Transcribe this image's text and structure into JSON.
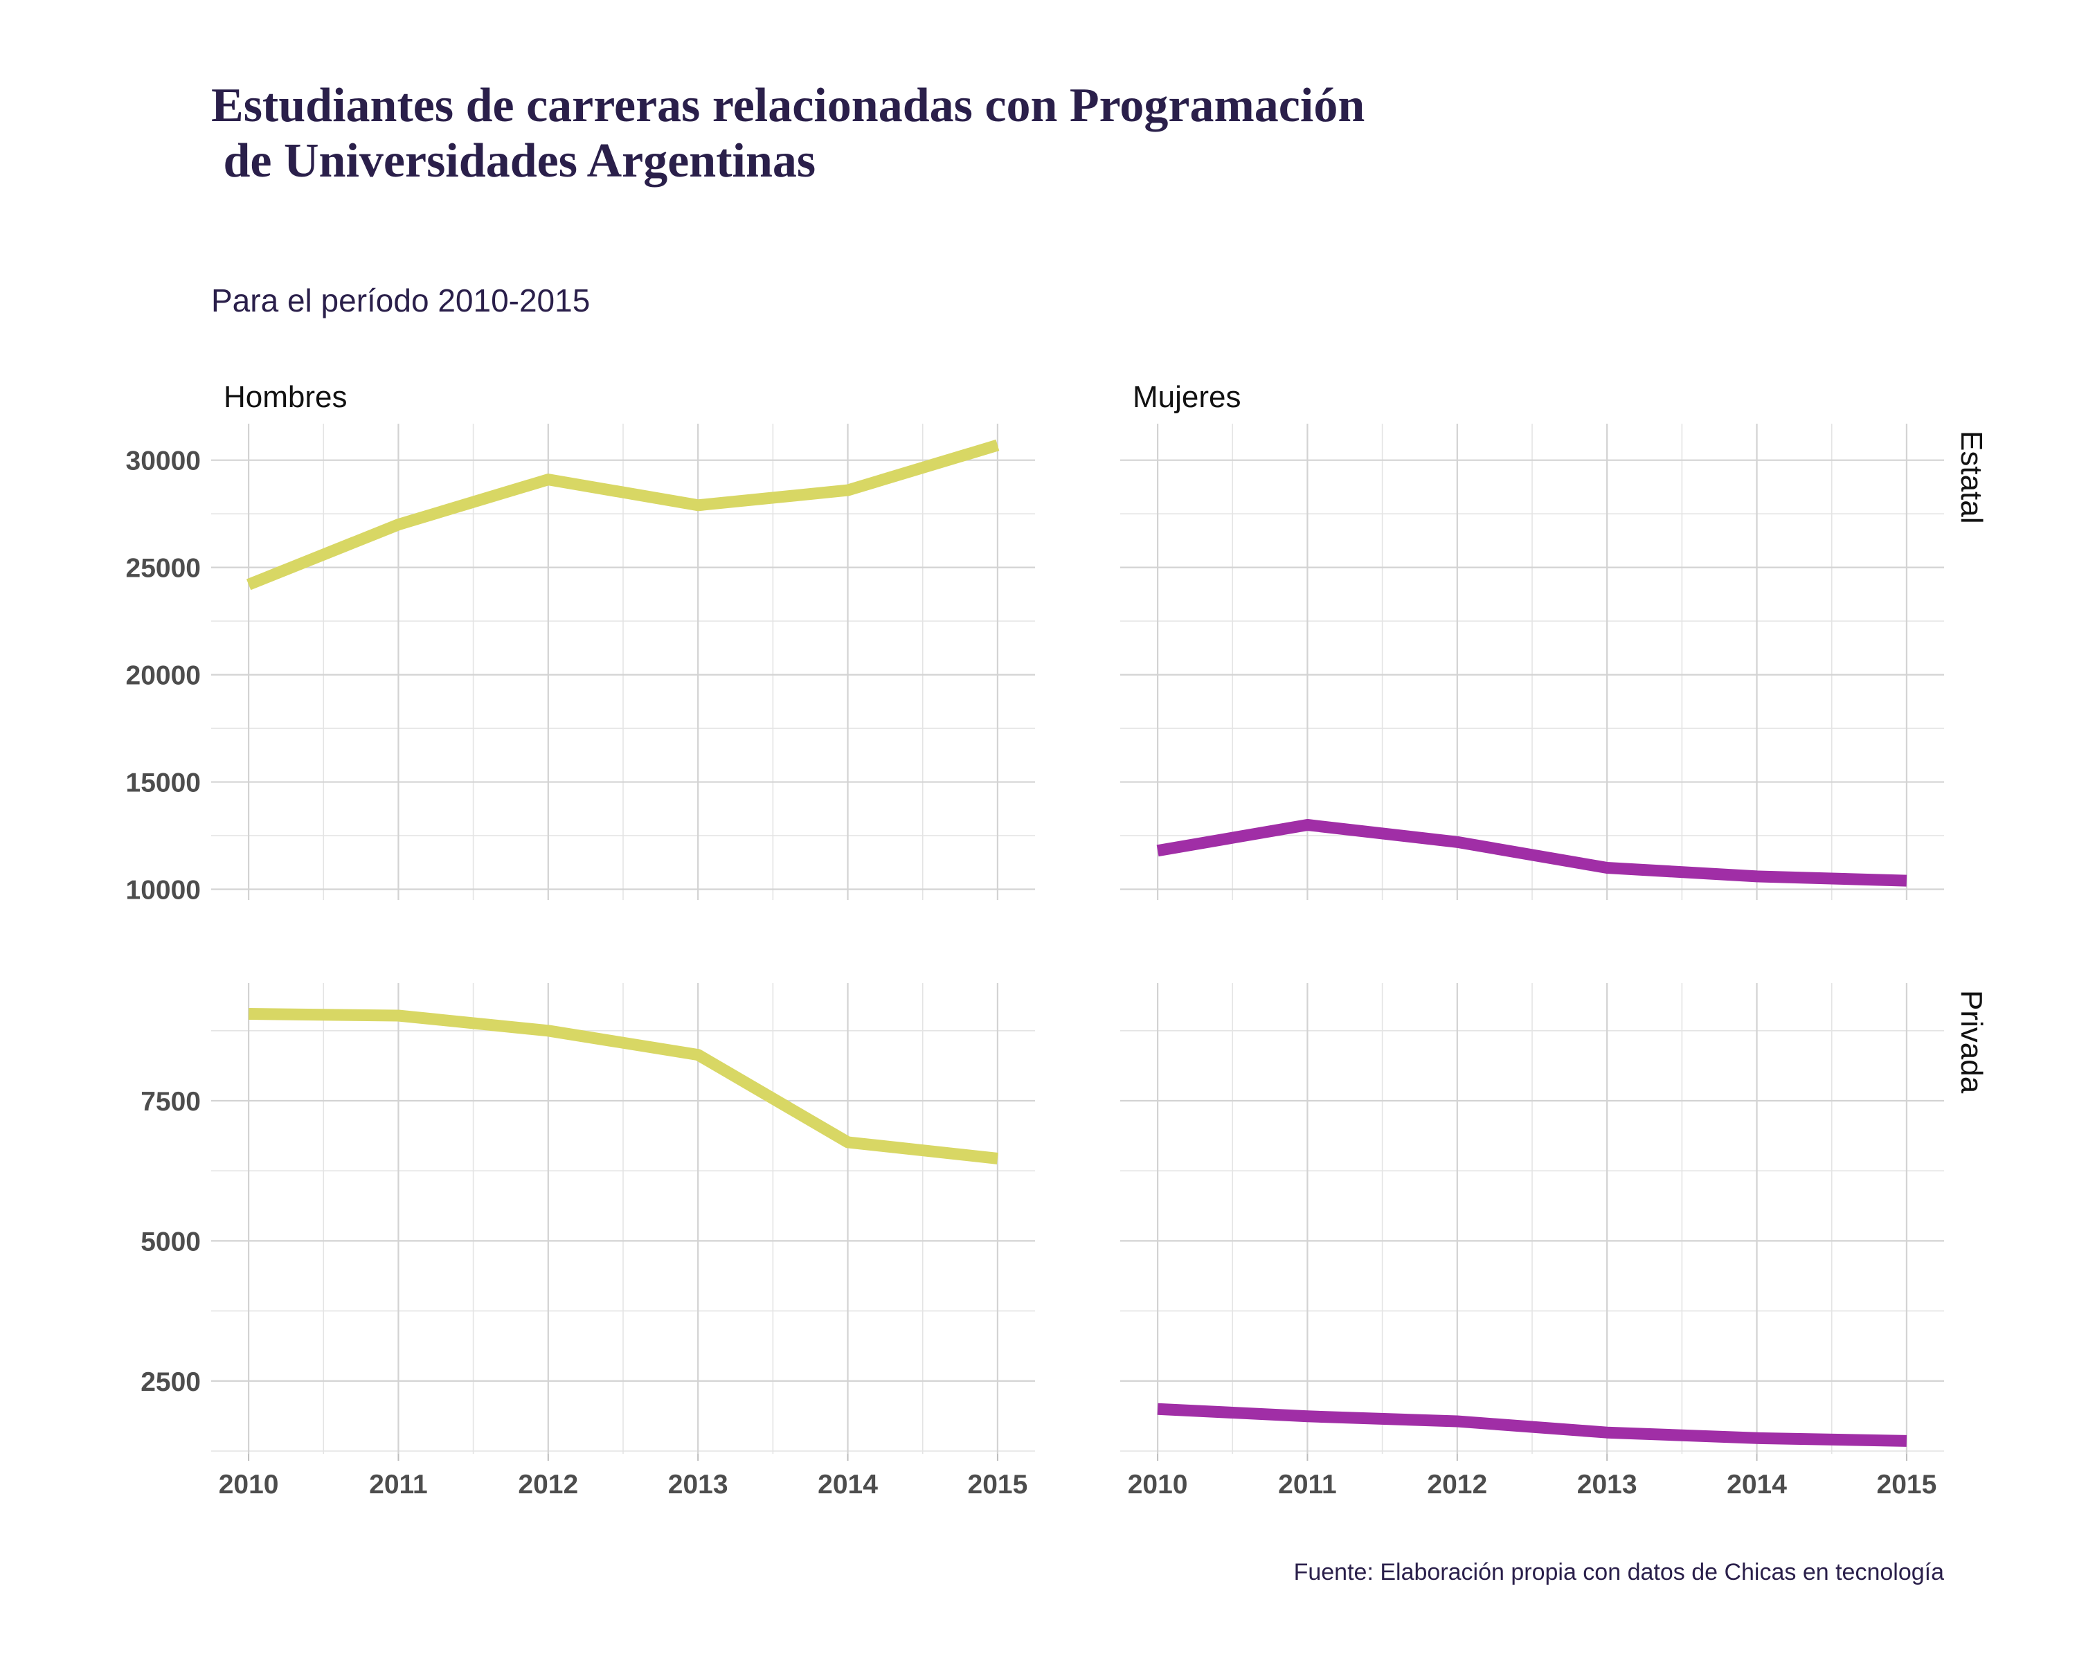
{
  "title_line1": "Estudiantes de carreras relacionadas con Programación",
  "title_line2": " de Universidades Argentinas",
  "subtitle": "Para el período 2010-2015",
  "caption": "Fuente: Elaboración propia con datos de Chicas en tecnología",
  "colors": {
    "Hombres": "#d8d764",
    "Mujeres": "#a02ea6"
  },
  "chart_data": {
    "type": "line",
    "facet_cols": [
      "Hombres",
      "Mujeres"
    ],
    "facet_rows": [
      "Estatal",
      "Privada"
    ],
    "x": [
      2010,
      2011,
      2012,
      2013,
      2014,
      2015
    ],
    "xlim": [
      2009.75,
      2015.25
    ],
    "x_ticks": [
      "2010",
      "2011",
      "2012",
      "2013",
      "2014",
      "2015"
    ],
    "rows": [
      {
        "name": "Estatal",
        "ylim": [
          9500,
          31700
        ],
        "y_ticks": [
          10000,
          15000,
          20000,
          25000,
          30000
        ],
        "y_minor": [
          12500,
          17500,
          22500,
          27500
        ]
      },
      {
        "name": "Privada",
        "ylim": [
          1200,
          9600
        ],
        "y_ticks": [
          2500,
          5000,
          7500
        ],
        "y_minor": [
          1250,
          3750,
          6250,
          8750
        ]
      }
    ],
    "series": [
      {
        "name": "Hombres",
        "row": "Estatal",
        "values": [
          24200,
          27000,
          29100,
          27900,
          28600,
          30700
        ]
      },
      {
        "name": "Mujeres",
        "row": "Estatal",
        "values": [
          11800,
          13000,
          12200,
          11000,
          10600,
          10400
        ]
      },
      {
        "name": "Hombres",
        "row": "Privada",
        "values": [
          9050,
          9020,
          8750,
          8320,
          6760,
          6470
        ]
      },
      {
        "name": "Mujeres",
        "row": "Privada",
        "values": [
          2000,
          1870,
          1780,
          1580,
          1480,
          1430
        ]
      }
    ],
    "grid": true,
    "legend": "none"
  }
}
